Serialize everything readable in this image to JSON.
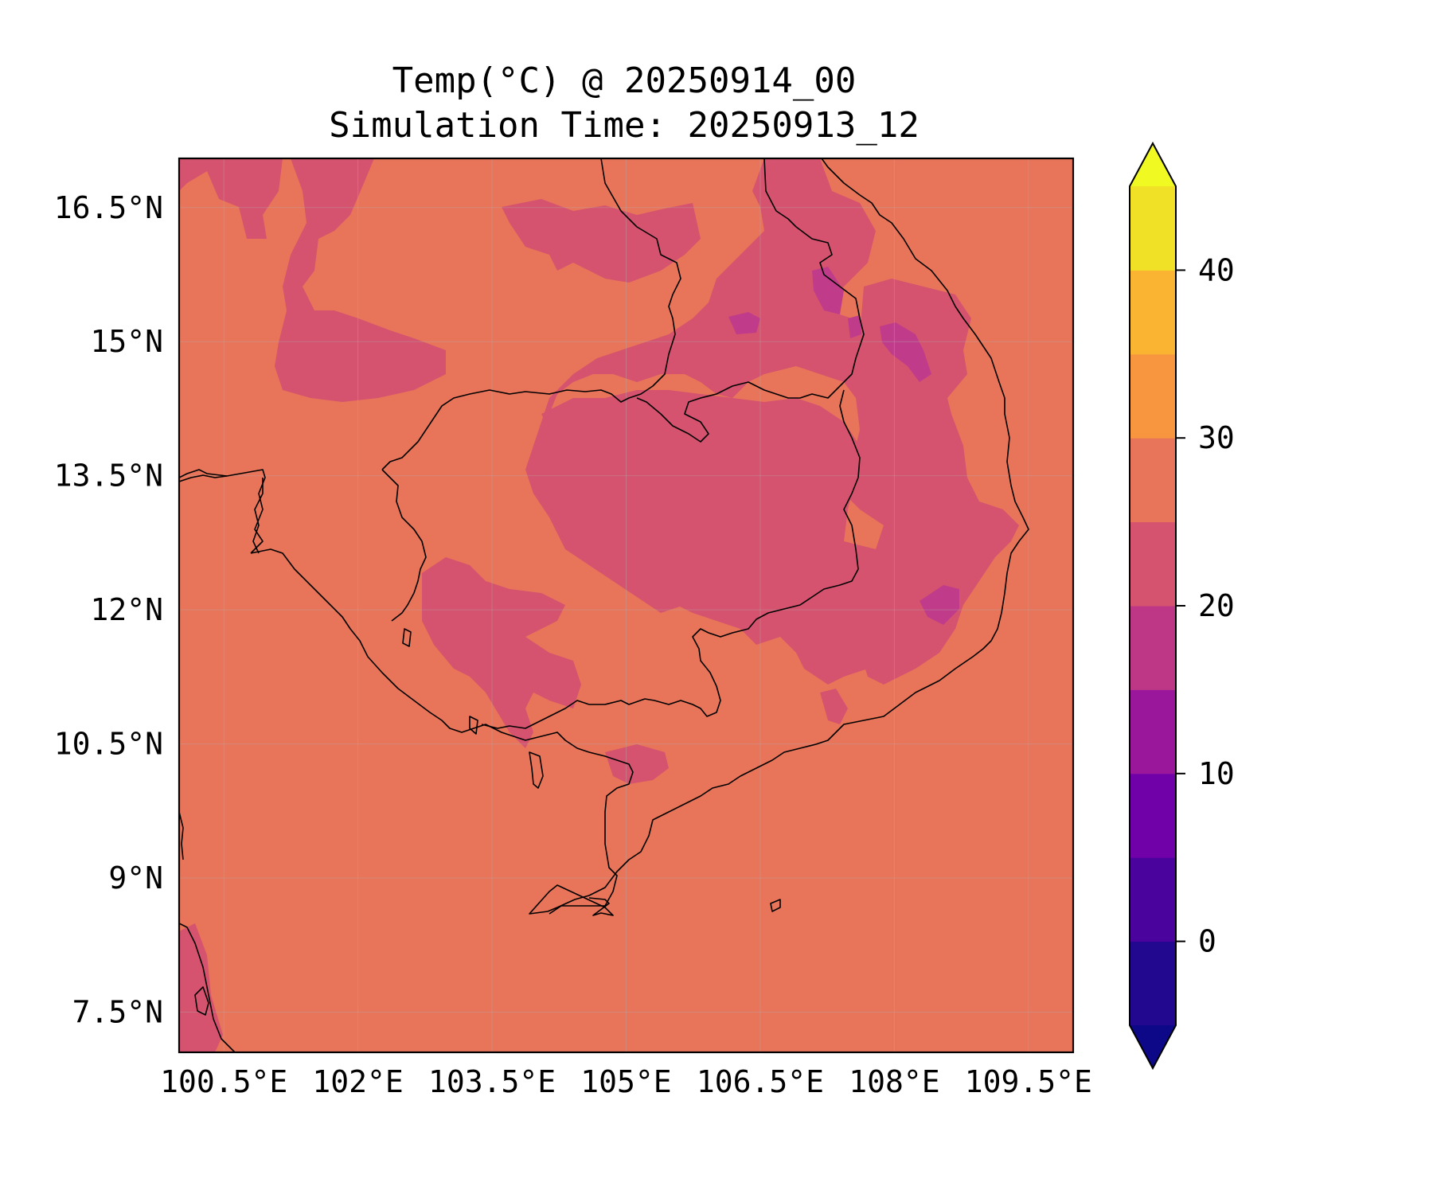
{
  "title": {
    "line1": "Temp(°C) @ 20250914_00",
    "line2": "Simulation Time: 20250913_12"
  },
  "map": {
    "extent": {
      "lon": [
        100.0,
        110.0
      ],
      "lat": [
        7.05,
        17.05
      ]
    },
    "x_ticks": [
      "100.5°E",
      "102°E",
      "103.5°E",
      "105°E",
      "106.5°E",
      "108°E",
      "109.5°E"
    ],
    "x_tick_values": [
      100.5,
      102,
      103.5,
      105,
      106.5,
      108,
      109.5
    ],
    "y_ticks": [
      "16.5°N",
      "15°N",
      "13.5°N",
      "12°N",
      "10.5°N",
      "9°N",
      "7.5°N"
    ],
    "y_tick_values": [
      16.5,
      15,
      13.5,
      12,
      10.5,
      9,
      7.5
    ],
    "grid": true,
    "background_class_color": "#e8745a",
    "field_classes": [
      {
        "range": "25-30",
        "color": "#e8745a"
      },
      {
        "range": "20-25",
        "color": "#d5536e"
      },
      {
        "range": "15-20",
        "color": "#c03c8a"
      }
    ]
  },
  "colorbar": {
    "ticks": [
      "0",
      "10",
      "20",
      "30",
      "40"
    ],
    "tick_values": [
      0,
      10,
      20,
      30,
      40
    ],
    "range": [
      -5,
      45
    ],
    "extend": "both",
    "levels": [
      {
        "from": -5,
        "to": 0,
        "color": "#22078f"
      },
      {
        "from": 0,
        "to": 5,
        "color": "#4b039e"
      },
      {
        "from": 5,
        "to": 10,
        "color": "#7001a8"
      },
      {
        "from": 10,
        "to": 15,
        "color": "#9a179b"
      },
      {
        "from": 15,
        "to": 20,
        "color": "#bd3786"
      },
      {
        "from": 20,
        "to": 25,
        "color": "#d5536e"
      },
      {
        "from": 25,
        "to": 30,
        "color": "#e8745a"
      },
      {
        "from": 30,
        "to": 35,
        "color": "#f7963f"
      },
      {
        "from": 35,
        "to": 40,
        "color": "#fbb432"
      },
      {
        "from": 40,
        "to": 45,
        "color": "#f1e126"
      }
    ],
    "under_color": "#0d0887",
    "over_color": "#f0f921"
  }
}
